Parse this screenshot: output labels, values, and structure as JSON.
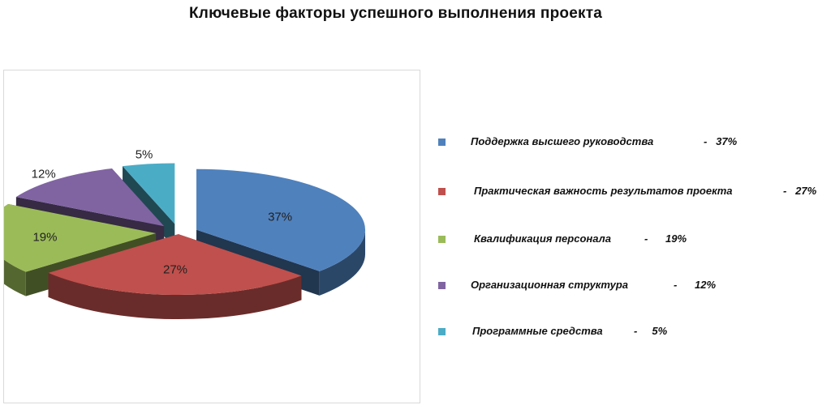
{
  "page": {
    "title": "Ключевые факторы успешного выполнения проекта"
  },
  "chart_data": {
    "type": "pie",
    "title": "Ключевые факторы успешного выполнения проекта",
    "slices": [
      {
        "name": "Поддержка высшего руководства",
        "value": 37,
        "data_label": "37%",
        "legend_value": "37%",
        "color": "#4f81bd"
      },
      {
        "name": "Практическая важность результатов проекта",
        "value": 27,
        "data_label": "27%",
        "legend_value": "27%",
        "color": "#c0504d"
      },
      {
        "name": "Квалификация персонала",
        "value": 19,
        "data_label": "19%",
        "legend_value": "19%",
        "color": "#9bbb59"
      },
      {
        "name": "Организационная структура",
        "value": 12,
        "data_label": "12%",
        "legend_value": "12%",
        "color": "#8064a2"
      },
      {
        "name": "Программные средства",
        "value": 5,
        "data_label": "5%",
        "legend_value": "5%",
        "color": "#4bacc6"
      }
    ],
    "legend_position": "right",
    "style": "3d-exploded"
  }
}
